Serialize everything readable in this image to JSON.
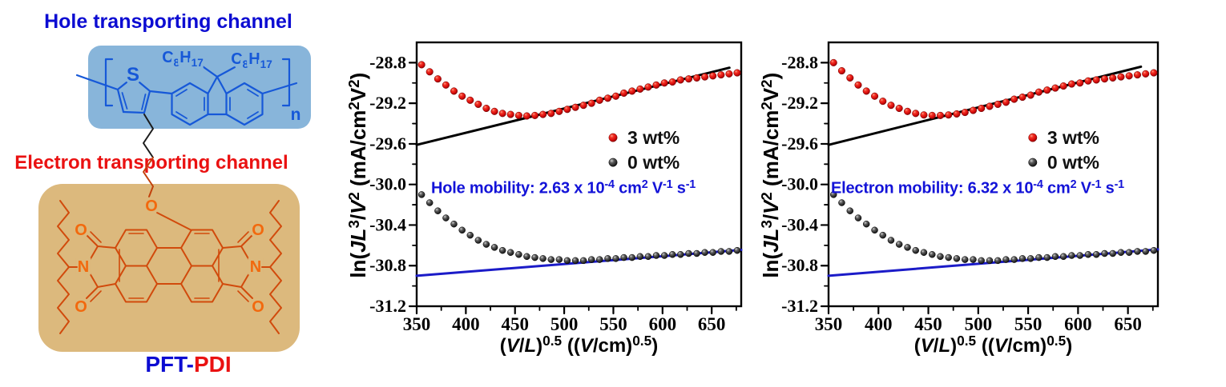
{
  "left_panel": {
    "title_top": "Hole transporting channel",
    "title_bottom": "Electron transporting channel",
    "molecule_name_part1": "PFT-",
    "molecule_name_part2": "PDI",
    "atoms": {
      "sulfur": "S",
      "oxygen": "O",
      "nitrogen": "N",
      "repeat_index": "n",
      "octyl_left": "C8H17",
      "octyl_right": "C8H17"
    },
    "colors": {
      "hole_box_fill": "#88b5da",
      "hole_structure": "#1658d8",
      "electron_box_fill": "#dcb97d",
      "electron_structure": "#d14a0c",
      "electron_atom_label": "#f2690e",
      "title_blue": "#0c0cd2",
      "title_red": "#ea1111"
    }
  },
  "chart_data": [
    {
      "type": "scatter",
      "panel": "hole",
      "xlim": [
        350,
        680
      ],
      "ylim": [
        -31.2,
        -28.6
      ],
      "xticks": [
        350,
        400,
        450,
        500,
        550,
        600,
        650
      ],
      "xtick_labels": [
        "350",
        "400",
        "450",
        "500",
        "550",
        "600",
        "650"
      ],
      "xminor": [
        375,
        425,
        475,
        525,
        575,
        625,
        675
      ],
      "yticks": [
        -28.8,
        -29.2,
        -29.6,
        -30.0,
        -30.4,
        -30.8,
        -31.2
      ],
      "ytick_labels": [
        "-28.8",
        "-29.2",
        "-29.6",
        "-30.0",
        "-30.4",
        "-30.8",
        "-31.2"
      ],
      "yminor": [
        -29.0,
        -29.4,
        -29.8,
        -30.2,
        -30.6,
        -31.0
      ],
      "xlabel_segments": [
        {
          "t": "("
        },
        {
          "t": "V",
          "i": true
        },
        {
          "t": "/"
        },
        {
          "t": "L",
          "i": true
        },
        {
          "t": ")"
        },
        {
          "t": "0.5",
          "sup": true
        },
        {
          "t": " (("
        },
        {
          "t": "V",
          "i": true
        },
        {
          "t": "/cm)"
        },
        {
          "t": "0.5",
          "sup": true
        },
        {
          "t": ")"
        }
      ],
      "ylabel_segments": [
        {
          "t": "ln("
        },
        {
          "t": "JL",
          "i": true
        },
        {
          "t": "3",
          "sup": true
        },
        {
          "t": "/"
        },
        {
          "t": "V",
          "i": true
        },
        {
          "t": "2",
          "sup": true
        },
        {
          "t": " (mA/cm"
        },
        {
          "t": "2",
          "sup": true
        },
        {
          "t": "V"
        },
        {
          "t": "2",
          "sup": true
        },
        {
          "t": ")"
        }
      ],
      "annotation_segments": [
        {
          "t": "Hole mobility: 2.63 x 10"
        },
        {
          "t": "-4",
          "sup": true
        },
        {
          "t": " cm"
        },
        {
          "t": "2",
          "sup": true
        },
        {
          "t": " V"
        },
        {
          "t": "-1",
          "sup": true
        },
        {
          "t": " s"
        },
        {
          "t": "-1",
          "sup": true
        }
      ],
      "legend": {
        "items": [
          {
            "label": "3 wt%",
            "marker": "red"
          },
          {
            "label": "0 wt%",
            "marker": "black"
          }
        ]
      },
      "series": [
        {
          "name": "3 wt%",
          "marker": "red",
          "points": [
            [
              355,
              -28.82
            ],
            [
              363.2,
              -28.89
            ],
            [
              371.5,
              -28.96
            ],
            [
              379.7,
              -29.02
            ],
            [
              387.9,
              -29.08
            ],
            [
              396.2,
              -29.13
            ],
            [
              404.4,
              -29.17
            ],
            [
              412.6,
              -29.21
            ],
            [
              420.8,
              -29.25
            ],
            [
              429.1,
              -29.28
            ],
            [
              437.3,
              -29.3
            ],
            [
              445.5,
              -29.31
            ],
            [
              453.8,
              -29.32
            ],
            [
              462,
              -29.325
            ],
            [
              470.2,
              -29.32
            ],
            [
              478.4,
              -29.31
            ],
            [
              486.7,
              -29.3
            ],
            [
              494.9,
              -29.28
            ],
            [
              503.1,
              -29.26
            ],
            [
              511.4,
              -29.24
            ],
            [
              519.6,
              -29.22
            ],
            [
              527.8,
              -29.2
            ],
            [
              536,
              -29.17
            ],
            [
              544.3,
              -29.15
            ],
            [
              552.5,
              -29.13
            ],
            [
              560.7,
              -29.1
            ],
            [
              569,
              -29.08
            ],
            [
              577.2,
              -29.06
            ],
            [
              585.4,
              -29.04
            ],
            [
              593.6,
              -29.02
            ],
            [
              601.9,
              -29.0
            ],
            [
              610.1,
              -28.99
            ],
            [
              618.3,
              -28.97
            ],
            [
              626.6,
              -28.96
            ],
            [
              634.8,
              -28.95
            ],
            [
              643,
              -28.94
            ],
            [
              651.2,
              -28.93
            ],
            [
              659.5,
              -28.92
            ],
            [
              667.7,
              -28.91
            ],
            [
              675.9,
              -28.9
            ]
          ]
        },
        {
          "name": "0 wt%",
          "marker": "black",
          "points": [
            [
              355,
              -30.1
            ],
            [
              363.2,
              -30.18
            ],
            [
              371.5,
              -30.26
            ],
            [
              379.7,
              -30.33
            ],
            [
              387.9,
              -30.39
            ],
            [
              396.2,
              -30.45
            ],
            [
              404.4,
              -30.5
            ],
            [
              412.6,
              -30.55
            ],
            [
              420.8,
              -30.59
            ],
            [
              429.1,
              -30.62
            ],
            [
              437.3,
              -30.65
            ],
            [
              445.5,
              -30.67
            ],
            [
              453.8,
              -30.69
            ],
            [
              462,
              -30.71
            ],
            [
              470.2,
              -30.72
            ],
            [
              478.4,
              -30.73
            ],
            [
              486.7,
              -30.74
            ],
            [
              494.9,
              -30.74
            ],
            [
              503.1,
              -30.75
            ],
            [
              511.4,
              -30.75
            ],
            [
              519.6,
              -30.75
            ],
            [
              527.8,
              -30.74
            ],
            [
              536,
              -30.74
            ],
            [
              544.3,
              -30.73
            ],
            [
              552.5,
              -30.73
            ],
            [
              560.7,
              -30.72
            ],
            [
              569,
              -30.72
            ],
            [
              577.2,
              -30.71
            ],
            [
              585.4,
              -30.71
            ],
            [
              593.6,
              -30.7
            ],
            [
              601.9,
              -30.7
            ],
            [
              610.1,
              -30.69
            ],
            [
              618.3,
              -30.69
            ],
            [
              626.6,
              -30.68
            ],
            [
              634.8,
              -30.68
            ],
            [
              643,
              -30.67
            ],
            [
              651.2,
              -30.67
            ],
            [
              659.5,
              -30.66
            ],
            [
              667.7,
              -30.66
            ],
            [
              675.9,
              -30.65
            ]
          ]
        }
      ],
      "fit_lines": [
        {
          "color": "#000000",
          "x1": 350,
          "y1": -29.61,
          "x2": 668,
          "y2": -28.85
        },
        {
          "color": "#1b1bc8",
          "x1": 350,
          "y1": -30.9,
          "x2": 680,
          "y2": -30.645
        }
      ]
    },
    {
      "type": "scatter",
      "panel": "electron",
      "xlim": [
        350,
        680
      ],
      "ylim": [
        -31.2,
        -28.6
      ],
      "xticks": [
        350,
        400,
        450,
        500,
        550,
        600,
        650
      ],
      "xtick_labels": [
        "350",
        "400",
        "450",
        "500",
        "550",
        "600",
        "650"
      ],
      "xminor": [
        375,
        425,
        475,
        525,
        575,
        625,
        675
      ],
      "yticks": [
        -28.8,
        -29.2,
        -29.6,
        -30.0,
        -30.4,
        -30.8,
        -31.2
      ],
      "ytick_labels": [
        "-28.8",
        "-29.2",
        "-29.6",
        "-30.0",
        "-30.4",
        "-30.8",
        "-31.2"
      ],
      "yminor": [
        -29.0,
        -29.4,
        -29.8,
        -30.2,
        -30.6,
        -31.0
      ],
      "xlabel_segments": [
        {
          "t": "("
        },
        {
          "t": "V",
          "i": true
        },
        {
          "t": "/"
        },
        {
          "t": "L",
          "i": true
        },
        {
          "t": ")"
        },
        {
          "t": "0.5",
          "sup": true
        },
        {
          "t": " (("
        },
        {
          "t": "V",
          "i": true
        },
        {
          "t": "/cm)"
        },
        {
          "t": "0.5",
          "sup": true
        },
        {
          "t": ")"
        }
      ],
      "ylabel_segments": [
        {
          "t": "ln("
        },
        {
          "t": "JL",
          "i": true
        },
        {
          "t": "3",
          "sup": true
        },
        {
          "t": "/"
        },
        {
          "t": "V",
          "i": true
        },
        {
          "t": "2",
          "sup": true
        },
        {
          "t": " (mA/cm"
        },
        {
          "t": "2",
          "sup": true
        },
        {
          "t": "V"
        },
        {
          "t": "2",
          "sup": true
        },
        {
          "t": ")"
        }
      ],
      "annotation_segments": [
        {
          "t": "Electron mobility: 6.32 x 10"
        },
        {
          "t": "-4",
          "sup": true
        },
        {
          "t": " cm"
        },
        {
          "t": "2",
          "sup": true
        },
        {
          "t": " V"
        },
        {
          "t": "-1",
          "sup": true
        },
        {
          "t": " s"
        },
        {
          "t": "-1",
          "sup": true
        }
      ],
      "legend": {
        "items": [
          {
            "label": "3 wt%",
            "marker": "red"
          },
          {
            "label": "0 wt%",
            "marker": "black"
          }
        ]
      },
      "series": [
        {
          "name": "3 wt%",
          "marker": "red",
          "points": [
            [
              355,
              -28.8
            ],
            [
              363.2,
              -28.88
            ],
            [
              371.5,
              -28.95
            ],
            [
              379.7,
              -29.02
            ],
            [
              387.9,
              -29.08
            ],
            [
              396.2,
              -29.13
            ],
            [
              404.4,
              -29.18
            ],
            [
              412.6,
              -29.22
            ],
            [
              420.8,
              -29.25
            ],
            [
              429.1,
              -29.28
            ],
            [
              437.3,
              -29.3
            ],
            [
              445.5,
              -29.315
            ],
            [
              453.8,
              -29.32
            ],
            [
              462,
              -29.32
            ],
            [
              470.2,
              -29.315
            ],
            [
              478.4,
              -29.305
            ],
            [
              486.7,
              -29.29
            ],
            [
              494.9,
              -29.27
            ],
            [
              503.1,
              -29.25
            ],
            [
              511.4,
              -29.23
            ],
            [
              519.6,
              -29.21
            ],
            [
              527.8,
              -29.19
            ],
            [
              536,
              -29.16
            ],
            [
              544.3,
              -29.14
            ],
            [
              552.5,
              -29.12
            ],
            [
              560.7,
              -29.09
            ],
            [
              569,
              -29.07
            ],
            [
              577.2,
              -29.05
            ],
            [
              585.4,
              -29.03
            ],
            [
              593.6,
              -29.01
            ],
            [
              601.9,
              -29.0
            ],
            [
              610.1,
              -28.98
            ],
            [
              618.3,
              -28.97
            ],
            [
              626.6,
              -28.96
            ],
            [
              634.8,
              -28.95
            ],
            [
              643,
              -28.94
            ],
            [
              651.2,
              -28.93
            ],
            [
              659.5,
              -28.92
            ],
            [
              667.7,
              -28.91
            ],
            [
              675.9,
              -28.9
            ]
          ]
        },
        {
          "name": "0 wt%",
          "marker": "black",
          "points": [
            [
              355,
              -30.1
            ],
            [
              363.2,
              -30.18
            ],
            [
              371.5,
              -30.26
            ],
            [
              379.7,
              -30.33
            ],
            [
              387.9,
              -30.39
            ],
            [
              396.2,
              -30.45
            ],
            [
              404.4,
              -30.5
            ],
            [
              412.6,
              -30.55
            ],
            [
              420.8,
              -30.59
            ],
            [
              429.1,
              -30.62
            ],
            [
              437.3,
              -30.65
            ],
            [
              445.5,
              -30.67
            ],
            [
              453.8,
              -30.69
            ],
            [
              462,
              -30.71
            ],
            [
              470.2,
              -30.72
            ],
            [
              478.4,
              -30.73
            ],
            [
              486.7,
              -30.74
            ],
            [
              494.9,
              -30.74
            ],
            [
              503.1,
              -30.75
            ],
            [
              511.4,
              -30.75
            ],
            [
              519.6,
              -30.75
            ],
            [
              527.8,
              -30.74
            ],
            [
              536,
              -30.74
            ],
            [
              544.3,
              -30.73
            ],
            [
              552.5,
              -30.73
            ],
            [
              560.7,
              -30.72
            ],
            [
              569,
              -30.72
            ],
            [
              577.2,
              -30.71
            ],
            [
              585.4,
              -30.71
            ],
            [
              593.6,
              -30.7
            ],
            [
              601.9,
              -30.7
            ],
            [
              610.1,
              -30.69
            ],
            [
              618.3,
              -30.69
            ],
            [
              626.6,
              -30.68
            ],
            [
              634.8,
              -30.68
            ],
            [
              643,
              -30.67
            ],
            [
              651.2,
              -30.67
            ],
            [
              659.5,
              -30.66
            ],
            [
              667.7,
              -30.66
            ],
            [
              675.9,
              -30.65
            ]
          ]
        }
      ],
      "fit_lines": [
        {
          "color": "#000000",
          "x1": 350,
          "y1": -29.61,
          "x2": 663,
          "y2": -28.84
        },
        {
          "color": "#1b1bc8",
          "x1": 350,
          "y1": -30.9,
          "x2": 680,
          "y2": -30.64
        }
      ]
    }
  ]
}
